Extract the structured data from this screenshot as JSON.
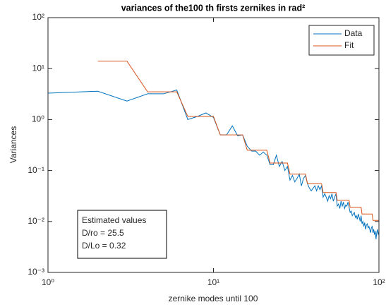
{
  "chart_data": {
    "type": "line",
    "title": "variances of the100 th firsts zernikes in rad²",
    "x_label": "zernike modes until 100",
    "y_label": "Variances",
    "log_x": true,
    "log_y": true,
    "xlim": [
      1,
      100
    ],
    "ylim": [
      0.001,
      100
    ],
    "xticks": [
      {
        "value": 1,
        "label": "10⁰"
      },
      {
        "value": 10,
        "label": "10¹"
      },
      {
        "value": 100,
        "label": "10²"
      }
    ],
    "yticks": [
      {
        "value": 0.001,
        "label": "10⁻³"
      },
      {
        "value": 0.01,
        "label": "10⁻²"
      },
      {
        "value": 0.1,
        "label": "10⁻¹"
      },
      {
        "value": 1,
        "label": "10⁰"
      },
      {
        "value": 10,
        "label": "10¹"
      },
      {
        "value": 100,
        "label": "10²"
      }
    ],
    "legend": "northeast",
    "annotation": [
      "Estimated values",
      "D/ro = 25.5",
      "D/Lo = 0.32"
    ],
    "series": [
      {
        "name": "Data",
        "color": "#0072BD",
        "x": [
          1,
          2,
          3,
          4,
          5,
          6,
          7,
          8,
          9,
          10,
          11,
          12,
          13,
          14,
          15,
          16,
          17,
          18,
          19,
          20,
          21,
          22,
          23,
          24,
          25,
          26,
          27,
          28,
          29,
          30,
          31,
          32,
          33,
          34,
          35,
          36,
          37,
          38,
          39,
          40,
          41,
          42,
          43,
          44,
          45,
          46,
          47,
          48,
          49,
          50,
          51,
          52,
          53,
          54,
          55,
          56,
          57,
          58,
          59,
          60,
          61,
          62,
          63,
          64,
          65,
          66,
          67,
          68,
          69,
          70,
          71,
          72,
          73,
          74,
          75,
          76,
          77,
          78,
          79,
          80,
          81,
          82,
          83,
          84,
          85,
          86,
          87,
          88,
          89,
          90,
          91,
          92,
          93,
          94,
          95,
          96,
          97,
          98,
          99,
          100
        ],
        "values": [
          3.3,
          3.6,
          2.3,
          3.2,
          3.2,
          3.8,
          1.0,
          1.15,
          1.35,
          1.1,
          0.5,
          0.5,
          0.75,
          0.48,
          0.5,
          0.3,
          0.24,
          0.24,
          0.2,
          0.23,
          0.2,
          0.13,
          0.13,
          0.2,
          0.12,
          0.15,
          0.1,
          0.12,
          0.065,
          0.08,
          0.06,
          0.07,
          0.085,
          0.05,
          0.07,
          0.08,
          0.055,
          0.045,
          0.04,
          0.045,
          0.05,
          0.04,
          0.05,
          0.042,
          0.05,
          0.03,
          0.035,
          0.03,
          0.025,
          0.032,
          0.028,
          0.035,
          0.025,
          0.03,
          0.035,
          0.02,
          0.022,
          0.018,
          0.025,
          0.02,
          0.024,
          0.018,
          0.021,
          0.02,
          0.024,
          0.019,
          0.015,
          0.016,
          0.013,
          0.014,
          0.015,
          0.012,
          0.013,
          0.011,
          0.014,
          0.012,
          0.01,
          0.013,
          0.009,
          0.01,
          0.008,
          0.0095,
          0.007,
          0.0085,
          0.009,
          0.0075,
          0.008,
          0.007,
          0.006,
          0.0075,
          0.008,
          0.006,
          0.007,
          0.0055,
          0.0065,
          0.0045,
          0.006,
          0.007,
          0.0055,
          0.0065
        ]
      },
      {
        "name": "Fit",
        "color": "#D95319",
        "x": [
          2,
          3,
          4,
          5,
          6,
          7,
          8,
          9,
          10,
          11,
          12,
          13,
          14,
          15,
          16,
          17,
          18,
          19,
          20,
          21,
          22,
          23,
          24,
          25,
          26,
          27,
          28,
          29,
          30,
          31,
          32,
          33,
          34,
          35,
          36,
          37,
          38,
          39,
          40,
          41,
          42,
          43,
          44,
          45,
          46,
          47,
          48,
          49,
          50,
          51,
          52,
          53,
          54,
          55,
          56,
          57,
          58,
          59,
          60,
          61,
          62,
          63,
          64,
          65,
          66,
          67,
          68,
          69,
          70,
          71,
          72,
          73,
          74,
          75,
          76,
          77,
          78,
          79,
          80,
          81,
          82,
          83,
          84,
          85,
          86,
          87,
          88,
          89,
          90,
          91,
          92,
          93,
          94,
          95,
          96,
          97,
          98,
          99,
          100
        ],
        "values": [
          14,
          14,
          3.5,
          3.5,
          3.5,
          1.15,
          1.15,
          1.15,
          1.15,
          0.5,
          0.5,
          0.5,
          0.5,
          0.5,
          0.25,
          0.25,
          0.25,
          0.25,
          0.25,
          0.25,
          0.14,
          0.14,
          0.14,
          0.14,
          0.14,
          0.14,
          0.14,
          0.085,
          0.085,
          0.085,
          0.085,
          0.085,
          0.085,
          0.085,
          0.085,
          0.055,
          0.055,
          0.055,
          0.055,
          0.055,
          0.055,
          0.055,
          0.055,
          0.055,
          0.037,
          0.037,
          0.037,
          0.037,
          0.037,
          0.037,
          0.037,
          0.037,
          0.037,
          0.037,
          0.026,
          0.026,
          0.026,
          0.026,
          0.026,
          0.026,
          0.026,
          0.026,
          0.026,
          0.026,
          0.026,
          0.019,
          0.019,
          0.019,
          0.019,
          0.019,
          0.019,
          0.019,
          0.019,
          0.019,
          0.019,
          0.019,
          0.019,
          0.014,
          0.014,
          0.014,
          0.014,
          0.014,
          0.014,
          0.014,
          0.014,
          0.014,
          0.014,
          0.014,
          0.014,
          0.014,
          0.0105,
          0.0105,
          0.0105,
          0.0105,
          0.0105,
          0.0105,
          0.0105,
          0.0105,
          0.0105
        ]
      }
    ]
  }
}
